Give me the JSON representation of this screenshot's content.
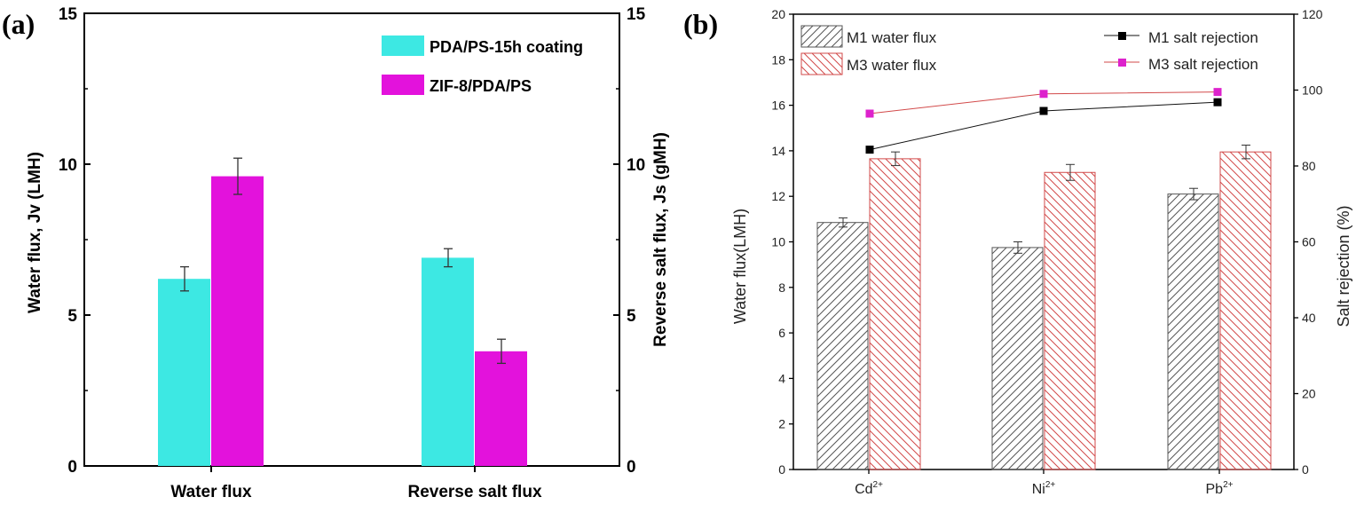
{
  "panels": {
    "a_label": "(a)",
    "b_label": "(b)"
  },
  "chart_data": [
    {
      "type": "bar",
      "categories": [
        "Water flux",
        "Reverse salt flux"
      ],
      "series": [
        {
          "name": "PDA/PS-15h coating",
          "color": "#3de8e3",
          "values": [
            6.2,
            6.9
          ],
          "errors": [
            0.4,
            0.3
          ]
        },
        {
          "name": "ZIF-8/PDA/PS",
          "color": "#e312dc",
          "values": [
            9.6,
            3.8
          ],
          "errors": [
            0.6,
            0.4
          ]
        }
      ],
      "ylabel": "Water flux, Jv (LMH)",
      "y2label": "Reverse salt flux, Js (gMH)",
      "ylim": [
        0,
        15
      ],
      "y2lim": [
        0,
        15
      ],
      "yticks": [
        0,
        5,
        10,
        15
      ],
      "legend": "top-right"
    },
    {
      "type": "bar",
      "categories": [
        "Cd2+",
        "Ni2+",
        "Pb2+"
      ],
      "category_base": [
        "Cd",
        "Ni",
        "Pb"
      ],
      "category_sup": [
        "2+",
        "2+",
        "2+"
      ],
      "series": [
        {
          "name": "M1 water flux",
          "color": "#555555",
          "values": [
            10.85,
            9.75,
            12.1
          ],
          "errors": [
            0.2,
            0.25,
            0.25
          ]
        },
        {
          "name": "M3 water flux",
          "color": "#d24a4a",
          "values": [
            13.65,
            13.05,
            13.95
          ],
          "errors": [
            0.3,
            0.35,
            0.3
          ]
        }
      ],
      "line_series": [
        {
          "name": "M1 salt rejection",
          "color": "#111111",
          "marker_color": "#000000",
          "values": [
            84.3,
            94.5,
            96.8
          ]
        },
        {
          "name": "M3 salt rejection",
          "color": "#d24a4a",
          "marker_color": "#dd22cc",
          "values": [
            93.8,
            99.0,
            99.5
          ]
        }
      ],
      "ylabel": "Water flux(LMH)",
      "y2label": "Salt rejection (%)",
      "ylim": [
        0,
        20
      ],
      "y2lim": [
        0,
        120
      ],
      "yticks": [
        0,
        2,
        4,
        6,
        8,
        10,
        12,
        14,
        16,
        18,
        20
      ],
      "y2ticks": [
        0,
        20,
        40,
        60,
        80,
        100,
        120
      ],
      "legend": "top"
    }
  ]
}
